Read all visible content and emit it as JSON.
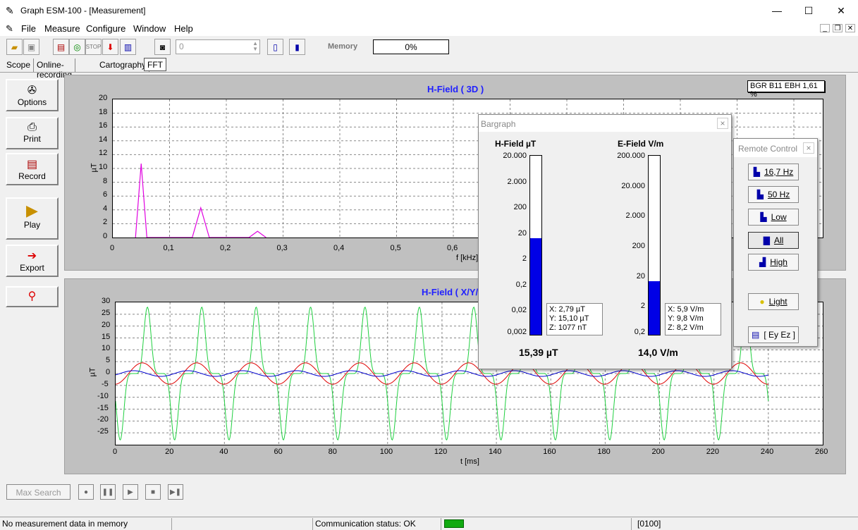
{
  "window": {
    "title": "Graph ESM-100 - [Measurement]",
    "minimize": "—",
    "maximize": "☐",
    "close": "✕"
  },
  "menu": {
    "file": "File",
    "measure": "Measure",
    "configure": "Configure",
    "window": "Window",
    "help": "Help"
  },
  "toolbar": {
    "spin_value": "0",
    "memory_label": "Memory",
    "memory_value": "0%"
  },
  "tabs": [
    "Scope",
    "Online-recording",
    "Cartography",
    "FFT"
  ],
  "sidebar": {
    "options": "Options",
    "print": "Print",
    "record": "Record",
    "play": "Play",
    "export": "Export"
  },
  "badge": "BGR B11 EBH 1,61 %",
  "chart_data": [
    {
      "type": "line",
      "title": "H-Field ( 3D )",
      "xlabel": "f [kHz]",
      "ylabel": "µT",
      "xlim": [
        0,
        1.2
      ],
      "ylim": [
        0,
        20
      ],
      "x_ticks": [
        "0",
        "0,1",
        "0,2",
        "0,3",
        "0,4",
        "0,5",
        "0,6"
      ],
      "y_ticks": [
        "0",
        "2",
        "4",
        "6",
        "8",
        "10",
        "12",
        "14",
        "16",
        "18",
        "20"
      ],
      "grid": true,
      "series": [
        {
          "color": "#e000e0",
          "x": [
            0.04,
            0.05,
            0.06,
            0.14,
            0.155,
            0.17,
            0.24,
            0.255,
            0.27
          ],
          "y": [
            0,
            10.7,
            0,
            0,
            4.3,
            0,
            0,
            0.9,
            0
          ]
        }
      ]
    },
    {
      "type": "line",
      "title": "H-Field ( X/Y/Z )",
      "xlabel": "t [ms]",
      "ylabel": "µT",
      "xlim": [
        0,
        260
      ],
      "ylim": [
        -30,
        30
      ],
      "x_ticks": [
        "0",
        "20",
        "40",
        "60",
        "80",
        "100",
        "120",
        "140",
        "160",
        "180",
        "200",
        "220",
        "240",
        "260"
      ],
      "y_ticks": [
        "30",
        "25",
        "20",
        "15",
        "10",
        "5",
        "0",
        "-5",
        "-10",
        "-15",
        "-20",
        "-25"
      ],
      "grid": true,
      "series": [
        {
          "color": "#20d040",
          "amplitude": 28,
          "period_ms": 20
        },
        {
          "color": "#e00000",
          "amplitude": 5,
          "period_ms": 20
        },
        {
          "color": "#0000d0",
          "amplitude": 1.2,
          "period_ms": 20
        }
      ]
    }
  ],
  "bargraph": {
    "title": "Bargraph",
    "close": "×",
    "h": {
      "label": "H-Field  µT",
      "scale": [
        "20.000",
        "2.000",
        "200",
        "20",
        "2",
        "0,2",
        "0,02",
        "0,002"
      ],
      "fill_fraction": 0.54,
      "x": "X: 2,79 µT",
      "y": "Y: 15,10 µT",
      "z": "Z: 1077 nT",
      "total": "15,39 µT"
    },
    "e": {
      "label": "E-Field  V/m",
      "scale": [
        "200.000",
        "20.000",
        "2.000",
        "200",
        "20",
        "2",
        "0,2"
      ],
      "fill_fraction": 0.3,
      "x": "X: 5,9 V/m",
      "y": "Y: 9,8 V/m",
      "z": "Z: 8,2 V/m",
      "total": "14,0 V/m"
    }
  },
  "remote": {
    "title": "Remote Control",
    "close": "×",
    "buttons": [
      "16,7 Hz",
      "50 Hz",
      "Low",
      "All",
      "High",
      "Light",
      "[ Ey Ez ]"
    ]
  },
  "bottom": {
    "max_search": "Max Search"
  },
  "status": {
    "memory": "No measurement data in memory",
    "comm": "Communication status: OK",
    "code": "[0100]"
  }
}
